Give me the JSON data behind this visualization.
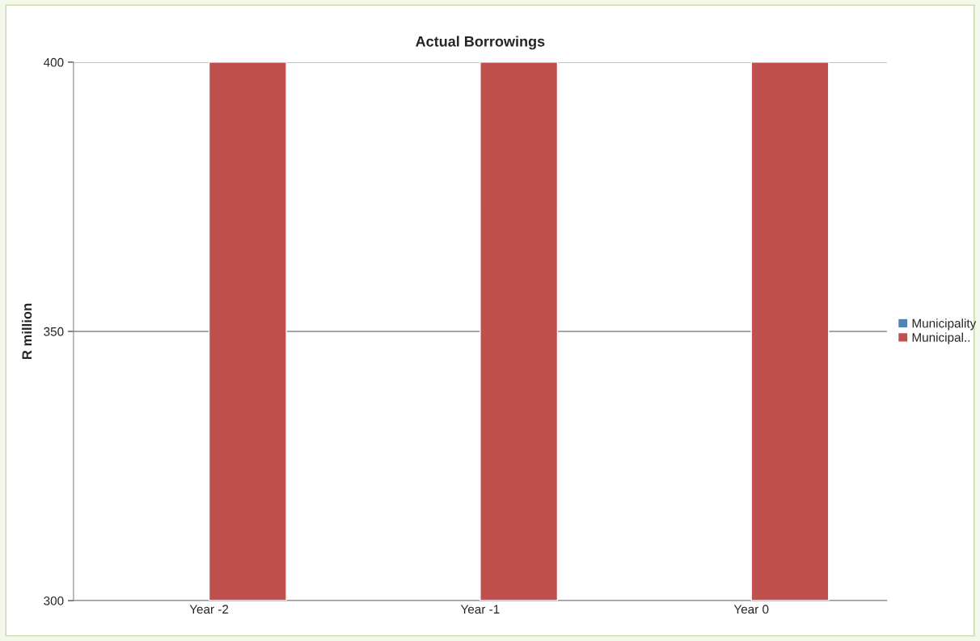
{
  "chart_data": {
    "type": "bar",
    "title": "Actual Borrowings",
    "ylabel": "R million",
    "categories": [
      "Year -2",
      "Year -1",
      "Year 0"
    ],
    "series": [
      {
        "name": "Municipality",
        "color": "#4f81bd",
        "values": [
          null,
          null,
          null
        ]
      },
      {
        "name": "Municipal..",
        "color": "#c0504d",
        "values": [
          400,
          400,
          400
        ]
      }
    ],
    "ylim": [
      300,
      400
    ],
    "yticks": [
      300,
      350,
      400
    ],
    "grid": "y",
    "legend": "right"
  }
}
